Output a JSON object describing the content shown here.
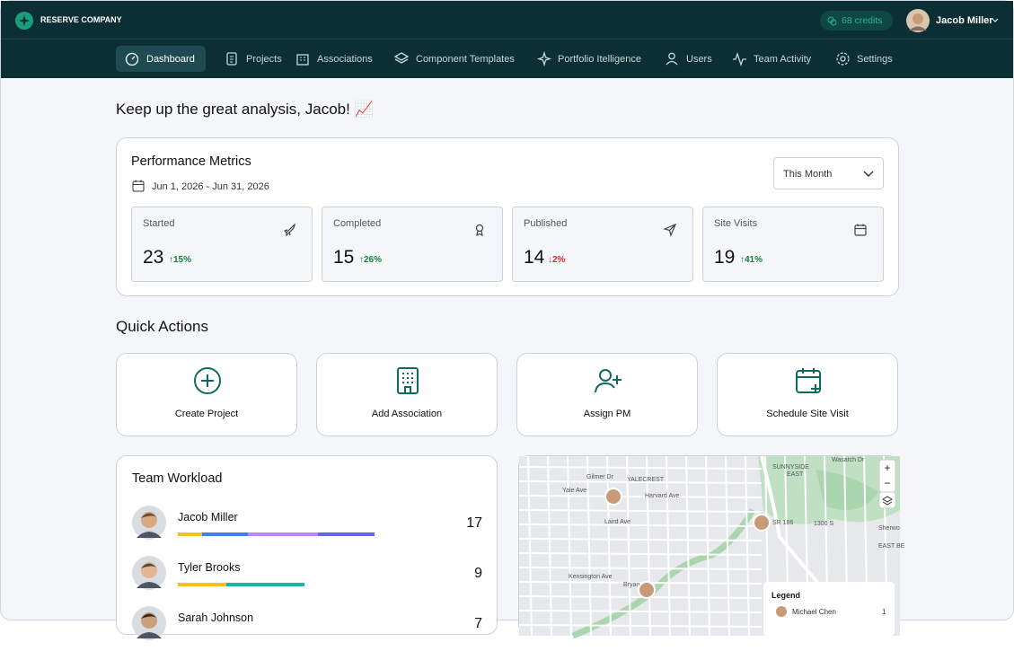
{
  "header": {
    "brand": "RESERVE COMPANY",
    "credits": "68 credits",
    "user": "Jacob Miller"
  },
  "nav": [
    "Dashboard",
    "Projects",
    "Associations",
    "Component Templates",
    "Portfolio Itelligence",
    "Users",
    "Team Activity",
    "Settings"
  ],
  "greeting": "Keep up the great analysis, Jacob! 📈",
  "metrics": {
    "title": "Performance Metrics",
    "date_range": "Jun 1, 2026 - Jun 31, 2026",
    "period": "This Month",
    "cards": [
      {
        "label": "Started",
        "value": "23",
        "change": "↑15%",
        "color": "#15803d"
      },
      {
        "label": "Completed",
        "value": "15",
        "change": "↑26%",
        "color": "#15803d"
      },
      {
        "label": "Published",
        "value": "14",
        "change": "↓2%",
        "color": "#dc2626"
      },
      {
        "label": "Site Visits",
        "value": "19",
        "change": "↑41%",
        "color": "#15803d"
      }
    ]
  },
  "quick_actions": {
    "title": "Quick Actions",
    "items": [
      "Create Project",
      "Add Association",
      "Assign PM",
      "Schedule Site Visit"
    ]
  },
  "workload": {
    "title": "Team Workload",
    "members": [
      {
        "name": "Jacob Miller",
        "count": "17"
      },
      {
        "name": "Tyler Brooks",
        "count": "9"
      },
      {
        "name": "Sarah Johnson",
        "count": "7"
      }
    ]
  },
  "map": {
    "labels": [
      "Gilmer Dr",
      "Yale Ave",
      "YALECREST",
      "Harvard Ave",
      "Laird Ave",
      "SUNNYSIDE",
      "EAST",
      "Wasatch Dr",
      "SR 186",
      "1300 S",
      "Kensington Ave",
      "Bryan",
      "Sherwo",
      "EAST BE"
    ],
    "zoom_in": "+",
    "zoom_out": "−",
    "legend": {
      "title": "Legend",
      "entries": [
        {
          "name": "Michael Chen",
          "count": "1"
        }
      ]
    }
  }
}
